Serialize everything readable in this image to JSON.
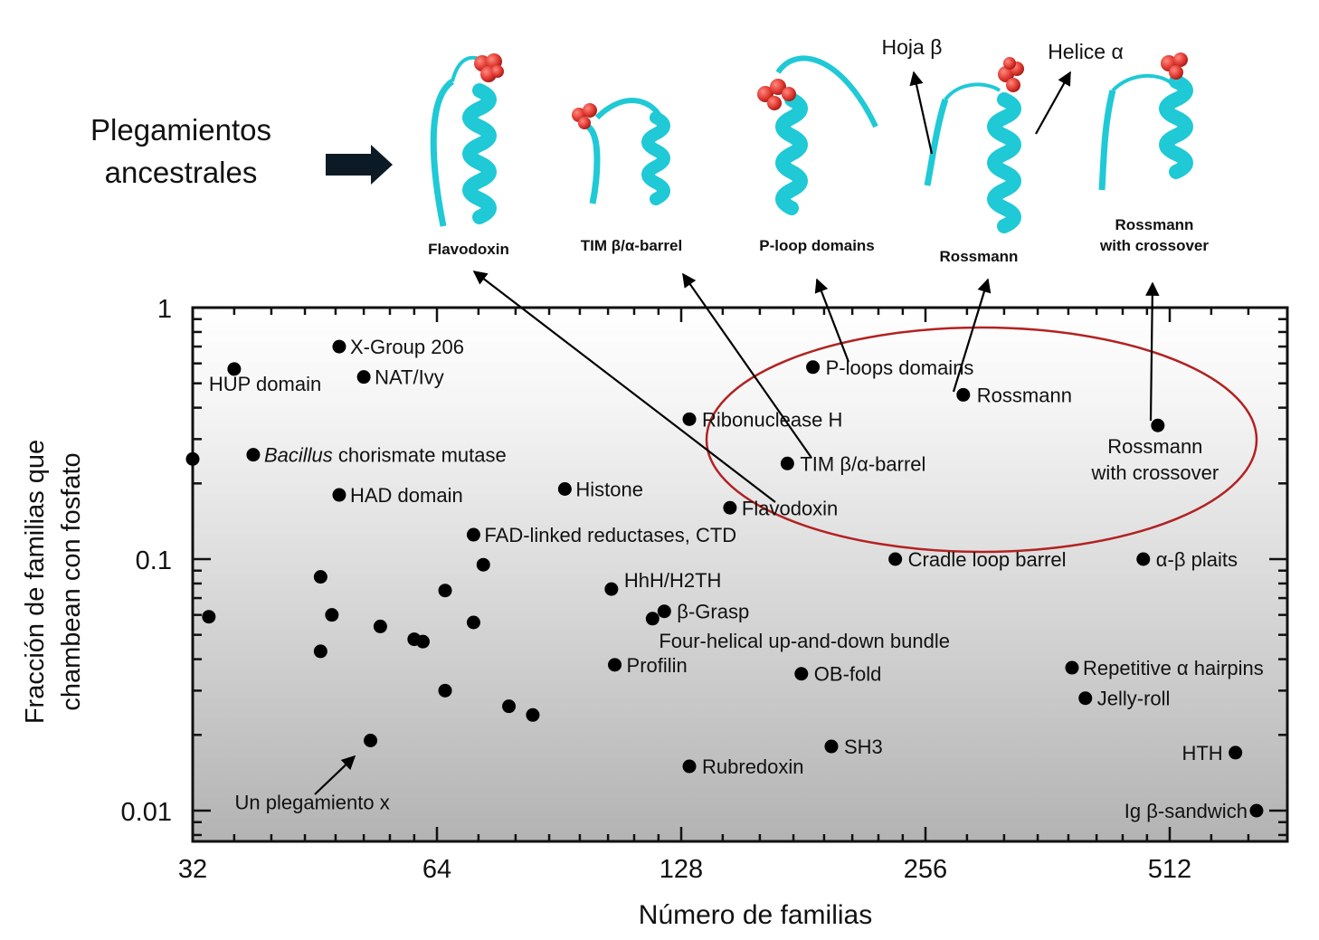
{
  "header": {
    "title_line1": "Plegamientos",
    "title_line2": "ancestrales"
  },
  "structures": [
    {
      "name": "Flavodoxin"
    },
    {
      "name": "TIM β/α-barrel"
    },
    {
      "name": "P-loop domains"
    },
    {
      "name": "Rossmann"
    },
    {
      "name": "Rossmann with crossover",
      "line1": "Rossmann",
      "line2": "with crossover"
    }
  ],
  "structure_annotations": {
    "sheet": "Hoja β",
    "helix": "Helice α"
  },
  "colors": {
    "helix": "#1fc9d6",
    "phosphate": "#e23a32",
    "phosphorus": "#f0a020",
    "ellipse": "#b22222"
  },
  "chart_data": {
    "type": "scatter",
    "xlabel": "Número de familias",
    "ylabel_line1": "Fracción de familias que",
    "ylabel_line2": "chambean con fosfato",
    "x_scale": "log2",
    "y_scale": "log10",
    "xlim": [
      32,
      680
    ],
    "ylim": [
      0.0075,
      1
    ],
    "x_ticks": [
      {
        "v": 32,
        "label": "32"
      },
      {
        "v": 64,
        "label": "64"
      },
      {
        "v": 128,
        "label": "128"
      },
      {
        "v": 256,
        "label": "256"
      },
      {
        "v": 512,
        "label": "512"
      }
    ],
    "y_ticks": [
      {
        "v": 1,
        "label": "1"
      },
      {
        "v": 0.1,
        "label": "0.1"
      },
      {
        "v": 0.01,
        "label": "0.01"
      }
    ],
    "grid": false,
    "points": [
      {
        "x": 36,
        "y": 0.57,
        "label": "HUP domain"
      },
      {
        "x": 48.5,
        "y": 0.7,
        "label": "X-Group 206"
      },
      {
        "x": 52,
        "y": 0.53,
        "label": "NAT/Ivy"
      },
      {
        "x": 38,
        "y": 0.26,
        "label_italic": "Bacillus",
        "label": " chorismate mutase"
      },
      {
        "x": 48.5,
        "y": 0.18,
        "label": "HAD domain"
      },
      {
        "x": 32,
        "y": 0.25
      },
      {
        "x": 92,
        "y": 0.19,
        "label": "Histone"
      },
      {
        "x": 71,
        "y": 0.125,
        "label": "FAD-linked reductases, CTD"
      },
      {
        "x": 131,
        "y": 0.36,
        "label": "Ribonuclease H"
      },
      {
        "x": 186,
        "y": 0.58,
        "label": "P-loops domains"
      },
      {
        "x": 285,
        "y": 0.45,
        "label": "Rossmann"
      },
      {
        "x": 173,
        "y": 0.24,
        "label": "TIM β/α-barrel"
      },
      {
        "x": 147,
        "y": 0.16,
        "label": "Flavodoxin"
      },
      {
        "x": 495,
        "y": 0.34,
        "label_line1": "Rossmann",
        "label_line2": "with crossover"
      },
      {
        "x": 235,
        "y": 0.1,
        "label": "Cradle loop barrel"
      },
      {
        "x": 475,
        "y": 0.1,
        "label": "α-β plaits"
      },
      {
        "x": 105,
        "y": 0.076,
        "label": "HhH/H2TH"
      },
      {
        "x": 122,
        "y": 0.062,
        "label": "β-Grasp"
      },
      {
        "x": 118,
        "y": 0.058,
        "label": "Four-helical up-and-down bundle"
      },
      {
        "x": 106,
        "y": 0.038,
        "label": "Profilin"
      },
      {
        "x": 180,
        "y": 0.035,
        "label": "OB-fold"
      },
      {
        "x": 388,
        "y": 0.037,
        "label": "Repetitive α hairpins"
      },
      {
        "x": 403,
        "y": 0.028,
        "label": "Jelly-roll"
      },
      {
        "x": 196,
        "y": 0.018,
        "label": "SH3"
      },
      {
        "x": 131,
        "y": 0.015,
        "label": "Rubredoxin"
      },
      {
        "x": 617,
        "y": 0.017,
        "label": "HTH"
      },
      {
        "x": 655,
        "y": 0.01,
        "label": "Ig β-sandwich"
      },
      {
        "x": 53,
        "y": 0.019,
        "label": "Un plegamiento x"
      },
      {
        "x": 33.5,
        "y": 0.059
      },
      {
        "x": 46,
        "y": 0.085
      },
      {
        "x": 47.5,
        "y": 0.06
      },
      {
        "x": 46,
        "y": 0.043
      },
      {
        "x": 54.5,
        "y": 0.054
      },
      {
        "x": 60,
        "y": 0.048
      },
      {
        "x": 61.5,
        "y": 0.047
      },
      {
        "x": 65.5,
        "y": 0.075
      },
      {
        "x": 71,
        "y": 0.056
      },
      {
        "x": 73,
        "y": 0.095
      },
      {
        "x": 65.5,
        "y": 0.03
      },
      {
        "x": 78.5,
        "y": 0.026
      },
      {
        "x": 84,
        "y": 0.024
      }
    ]
  }
}
